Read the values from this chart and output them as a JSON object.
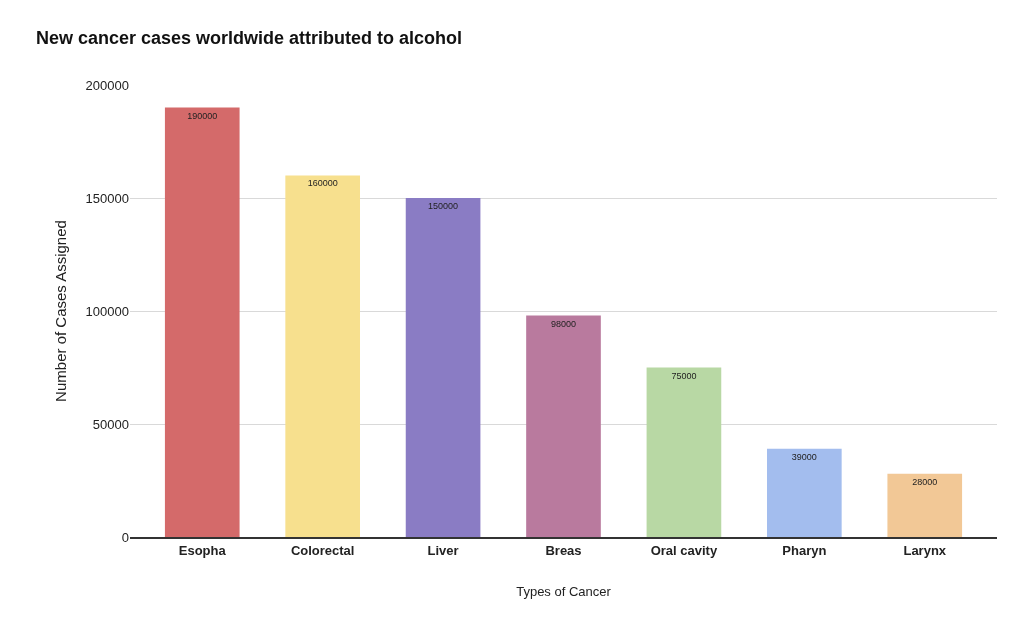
{
  "chart_data": {
    "type": "bar",
    "title": "New cancer cases worldwide attributed to alcohol",
    "xlabel": "Types of Cancer",
    "ylabel": "Number of Cases Assigned",
    "categories": [
      "Esopha",
      "Colorectal",
      "Liver",
      "Breas",
      "Oral cavity",
      "Pharyn",
      "Larynx"
    ],
    "values": [
      190000,
      160000,
      150000,
      98000,
      75000,
      39000,
      28000
    ],
    "colors": [
      "#d46a6a",
      "#f7e08e",
      "#8a7cc4",
      "#b97a9e",
      "#b8d8a4",
      "#a3bdee",
      "#f2c896"
    ],
    "data_labels": true,
    "ylim": [
      0,
      200000
    ],
    "yticks": [
      0,
      50000,
      100000,
      150000,
      200000
    ],
    "grid": "y"
  }
}
